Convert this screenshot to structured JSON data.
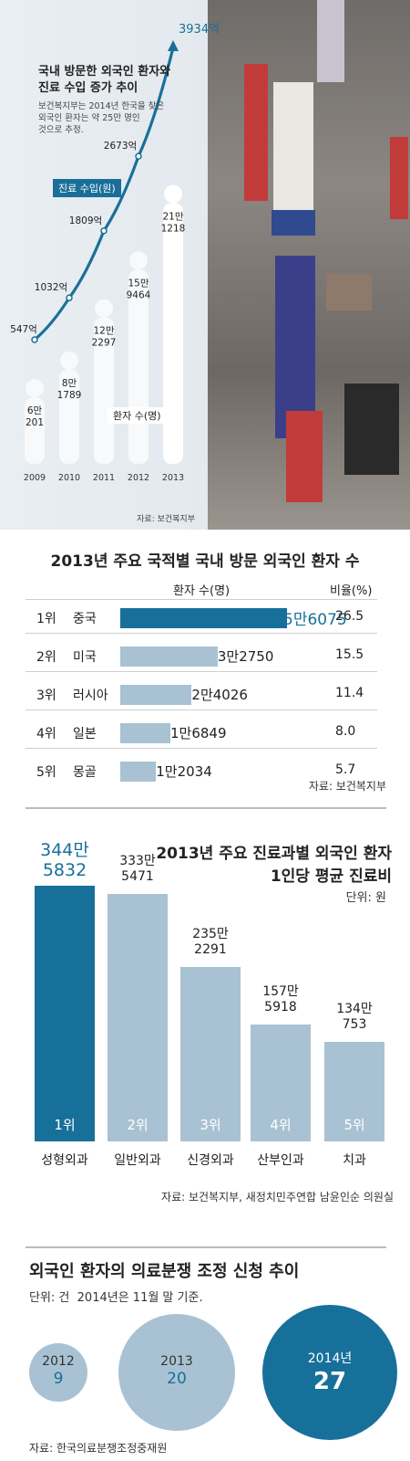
{
  "section1": {
    "title_line1": "국내 방문한 외국인 환자와",
    "title_line2": "진료 수입 증가 추이",
    "note_line1": "보건복지부는 2014년 한국을 찾은",
    "note_line2": "외국인 환자는 약 25만 명인",
    "note_line3": "것으로 추정.",
    "revenue_label": "진료 수입(원)",
    "patient_label": "환자 수(명)",
    "source": "자료: 보건복지부"
  },
  "section2": {
    "title": "2013년 주요 국적별 국내 방문 외국인 환자 수",
    "col_patients": "환자 수(명)",
    "col_ratio": "비율(%)",
    "source": "자료: 보건복지부"
  },
  "section3": {
    "title_line1": "2013년 주요 진료과별 외국인 환자",
    "title_line2": "1인당 평균 진료비",
    "unit": "단위: 원",
    "source": "자료: 보건복지부, 새정치민주연합 남윤인순 의원실"
  },
  "section4": {
    "title": "외국인 환자의 의료분쟁 조정 신청 추이",
    "unit": "단위: 건  2014년은 11월 말 기준.",
    "source": "자료: 한국의료분쟁조정중재원"
  },
  "chart_data": [
    {
      "type": "line",
      "series_name": "진료 수입(원)",
      "x": [
        "2009",
        "2010",
        "2011",
        "2012",
        "2013"
      ],
      "values": [
        547,
        1032,
        1809,
        2673,
        3934
      ],
      "labels": [
        "547억",
        "1032억",
        "1809억",
        "2673억",
        "3934억"
      ],
      "colors": {
        "line": "#1a6f99"
      }
    },
    {
      "type": "bar",
      "series_name": "환자 수(명)",
      "categories": [
        "2009",
        "2010",
        "2011",
        "2012",
        "2013"
      ],
      "values": [
        60201,
        81789,
        122297,
        159464,
        211218
      ],
      "labels": [
        [
          "6만",
          "201"
        ],
        [
          "8만",
          "1789"
        ],
        [
          "12만",
          "2297"
        ],
        [
          "15만",
          "9464"
        ],
        [
          "21만",
          "1218"
        ]
      ]
    },
    {
      "type": "bar",
      "orientation": "horizontal",
      "title": "2013년 주요 국적별 국내 방문 외국인 환자 수",
      "rows": [
        {
          "rank": "1위",
          "country": "중국",
          "value": 56075,
          "label": "5만6075",
          "ratio": "26.5"
        },
        {
          "rank": "2위",
          "country": "미국",
          "value": 32750,
          "label": "3만2750",
          "ratio": "15.5"
        },
        {
          "rank": "3위",
          "country": "러시아",
          "value": 24026,
          "label": "2만4026",
          "ratio": "11.4"
        },
        {
          "rank": "4위",
          "country": "일본",
          "value": 16849,
          "label": "1만6849",
          "ratio": "8.0"
        },
        {
          "rank": "5위",
          "country": "몽골",
          "value": 12034,
          "label": "1만2034",
          "ratio": "5.7"
        }
      ],
      "colors": {
        "highlight": "#17709a",
        "bar": "#a9c2d3"
      }
    },
    {
      "type": "bar",
      "title": "2013년 주요 진료과별 외국인 환자 1인당 평균 진료비",
      "categories": [
        "성형외과",
        "일반외과",
        "신경외과",
        "산부인과",
        "치과"
      ],
      "ranks": [
        "1위",
        "2위",
        "3위",
        "4위",
        "5위"
      ],
      "values": [
        3445832,
        3335471,
        2352291,
        1575918,
        1340753
      ],
      "labels": [
        [
          "344만",
          "5832"
        ],
        [
          "333만",
          "5471"
        ],
        [
          "235만",
          "2291"
        ],
        [
          "157만",
          "5918"
        ],
        [
          "134만",
          "753"
        ]
      ],
      "colors": {
        "highlight": "#17709a",
        "bar": "#a9c2d3"
      }
    },
    {
      "type": "bubble",
      "title": "외국인 환자의 의료분쟁 조정 신청 추이",
      "x": [
        "2012",
        "2013",
        "2014년"
      ],
      "values": [
        9,
        20,
        27
      ],
      "colors": {
        "highlight": "#17709a",
        "bubble": "#a9c2d3"
      }
    }
  ]
}
